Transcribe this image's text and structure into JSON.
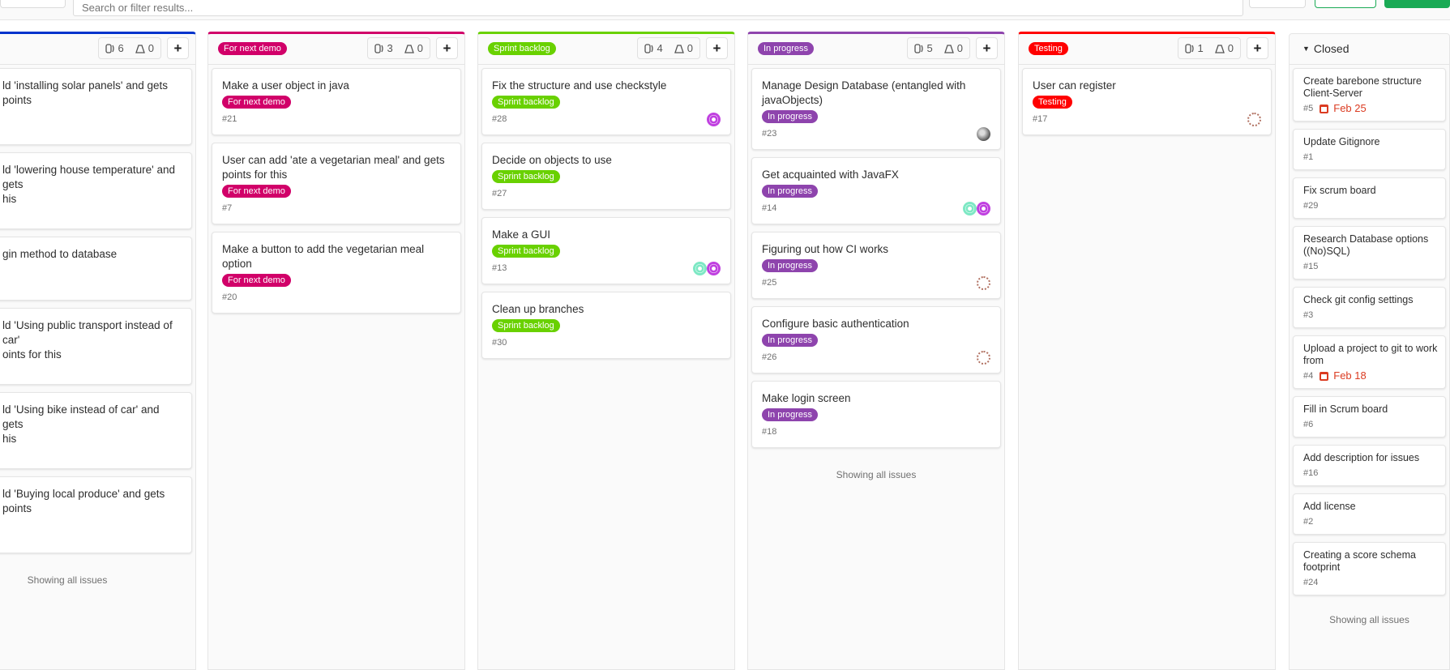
{
  "search": {
    "placeholder": "Search or filter results..."
  },
  "colors": {
    "blue": "#0033cc",
    "for_next_demo": "#d10069",
    "sprint_backlog": "#69d100",
    "in_progress": "#8e44ad",
    "testing": "#ff0000",
    "green_button": "#1aaa55"
  },
  "footer_text": "Showing all issues",
  "columns": [
    {
      "label": "",
      "color": "#0033cc",
      "issue_count": "6",
      "weight": "0",
      "cards": [
        {
          "title": "ld 'installing solar panels' and gets points"
        },
        {
          "title": "ld 'lowering house temperature' and gets\nhis"
        },
        {
          "title": "gin method to database"
        },
        {
          "title": "ld 'Using public transport instead of car'\noints for this"
        },
        {
          "title": "ld 'Using bike instead of car' and gets\nhis"
        },
        {
          "title": "ld 'Buying local produce' and gets points"
        }
      ]
    },
    {
      "label": "For next demo",
      "color": "#d10069",
      "issue_count": "3",
      "weight": "0",
      "cards": [
        {
          "title": "Make a user object in java",
          "label": "For next demo",
          "number": "#21"
        },
        {
          "title": "User can add 'ate a vegetarian meal' and gets points for this",
          "label": "For next demo",
          "number": "#7"
        },
        {
          "title": "Make a button to add the vegetarian meal option",
          "label": "For next demo",
          "number": "#20"
        }
      ]
    },
    {
      "label": "Sprint backlog",
      "color": "#69d100",
      "issue_count": "4",
      "weight": "0",
      "cards": [
        {
          "title": "Fix the structure and use checkstyle",
          "label": "Sprint backlog",
          "number": "#28",
          "avatars": [
            "magenta-identicon"
          ]
        },
        {
          "title": "Decide on objects to use",
          "label": "Sprint backlog",
          "number": "#27"
        },
        {
          "title": "Make a GUI",
          "label": "Sprint backlog",
          "number": "#13",
          "avatars": [
            "mint-identicon",
            "magenta-identicon"
          ]
        },
        {
          "title": "Clean up branches",
          "label": "Sprint backlog",
          "number": "#30"
        }
      ]
    },
    {
      "label": "In progress",
      "color": "#8e44ad",
      "issue_count": "5",
      "weight": "0",
      "cards": [
        {
          "title": "Manage Design Database (entangled with javaObjects)",
          "label": "In progress",
          "number": "#23",
          "avatars": [
            "photo-avatar"
          ]
        },
        {
          "title": "Get acquainted with JavaFX",
          "label": "In progress",
          "number": "#14",
          "avatars": [
            "mint-identicon",
            "magenta-identicon"
          ]
        },
        {
          "title": "Figuring out how CI works",
          "label": "In progress",
          "number": "#25",
          "avatars": [
            "brown-identicon"
          ]
        },
        {
          "title": "Configure basic authentication",
          "label": "In progress",
          "number": "#26",
          "avatars": [
            "brown-identicon"
          ]
        },
        {
          "title": "Make login screen",
          "label": "In progress",
          "number": "#18"
        }
      ]
    },
    {
      "label": "Testing",
      "color": "#ff0000",
      "issue_count": "1",
      "weight": "0",
      "cards": [
        {
          "title": "User can register",
          "label": "Testing",
          "number": "#17",
          "avatars": [
            "brown-identicon"
          ]
        }
      ]
    },
    {
      "label": "Closed",
      "closed": true,
      "cards": [
        {
          "title": "Create barebone structure Client-Server",
          "number": "#5",
          "due": "Feb 25"
        },
        {
          "title": "Update Gitignore",
          "number": "#1"
        },
        {
          "title": "Fix scrum board",
          "number": "#29"
        },
        {
          "title": "Research Database options ((No)SQL)",
          "number": "#15"
        },
        {
          "title": "Check git config settings",
          "number": "#3"
        },
        {
          "title": "Upload a project to git to work from",
          "number": "#4",
          "due": "Feb 18"
        },
        {
          "title": "Fill in Scrum board",
          "number": "#6"
        },
        {
          "title": "Add description for issues",
          "number": "#16"
        },
        {
          "title": "Add license",
          "number": "#2"
        },
        {
          "title": "Creating a score schema footprint",
          "number": "#24"
        }
      ]
    }
  ]
}
